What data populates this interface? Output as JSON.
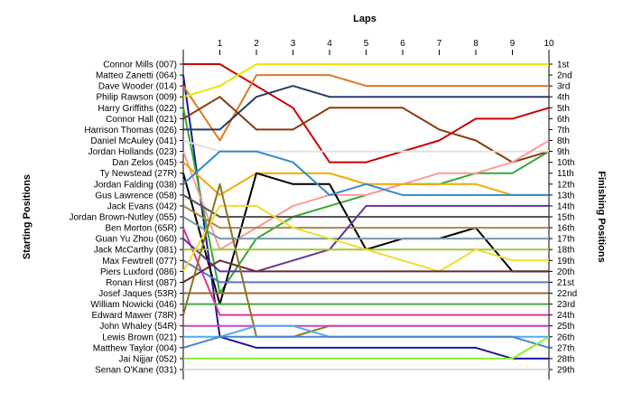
{
  "chart_data": {
    "type": "line",
    "title": "Laps",
    "ylabel_left": "Starting Positions",
    "ylabel_right": "Finishing Positions",
    "laps": [
      1,
      2,
      3,
      4,
      5,
      6,
      7,
      8,
      9,
      10
    ],
    "finishing_labels": [
      "1st",
      "2nd",
      "3rd",
      "4th",
      "5th",
      "6th",
      "7th",
      "8th",
      "9th",
      "10th",
      "11th",
      "12th",
      "13th",
      "14th",
      "15th",
      "16th",
      "17th",
      "18th",
      "19th",
      "20th",
      "21st",
      "22nd",
      "23rd",
      "24th",
      "25th",
      "26th",
      "27th",
      "28th",
      "29th"
    ],
    "grid": false,
    "series": [
      {
        "name": "Connor Mills (007)",
        "color": "#cc0000",
        "positions": [
          1,
          1,
          3,
          5,
          10,
          10,
          9,
          8,
          6,
          6,
          5
        ]
      },
      {
        "name": "Matteo Zanetti (064)",
        "color": "#1a1a99",
        "positions": [
          2,
          26,
          27,
          27,
          27,
          27,
          27,
          27,
          27,
          28,
          28
        ]
      },
      {
        "name": "Dave Wooder (014)",
        "color": "#e07820",
        "positions": [
          3,
          8,
          2,
          2,
          2,
          3,
          3,
          3,
          3,
          3,
          3
        ]
      },
      {
        "name": "Philip Rawson (009)",
        "color": "#e8e800",
        "positions": [
          4,
          3,
          1,
          1,
          1,
          1,
          1,
          1,
          1,
          1,
          1
        ]
      },
      {
        "name": "Harry Griffiths (022)",
        "color": "#33aa33",
        "positions": [
          5,
          22,
          17,
          15,
          14,
          13,
          12,
          12,
          11,
          11,
          9
        ]
      },
      {
        "name": "Connor Hall (021)",
        "color": "#8b3a0a",
        "positions": [
          6,
          4,
          7,
          7,
          5,
          5,
          5,
          7,
          8,
          10,
          9
        ]
      },
      {
        "name": "Harrison Thomas (026)",
        "color": "#2a3a66",
        "positions": [
          7,
          7,
          4,
          3,
          4,
          4,
          4,
          4,
          4,
          4,
          4
        ]
      },
      {
        "name": "Daniel McAuley (041)",
        "color": "#e0e0e0",
        "positions": [
          8,
          9,
          9,
          9,
          9,
          9,
          9,
          9,
          9,
          9,
          9
        ]
      },
      {
        "name": "Jordan Hollands (023)",
        "color": "#ff9999",
        "positions": [
          9,
          18,
          16,
          14,
          13,
          13,
          12,
          11,
          11,
          10,
          8
        ]
      },
      {
        "name": "Dan Zelos (045)",
        "color": "#eeaa00",
        "positions": [
          10,
          13,
          11,
          11,
          11,
          12,
          12,
          12,
          12,
          13,
          13
        ]
      },
      {
        "name": "Ty Newstead (27R)",
        "color": "#000000",
        "positions": [
          11,
          23,
          11,
          12,
          12,
          18,
          17,
          17,
          16,
          20,
          20
        ]
      },
      {
        "name": "Jordan Falding (038)",
        "color": "#3388cc",
        "positions": [
          12,
          9,
          9,
          10,
          13,
          12,
          13,
          13,
          13,
          13,
          13
        ]
      },
      {
        "name": "Gus Lawrence (058)",
        "color": "#555555",
        "positions": [
          13,
          15,
          15,
          15,
          15,
          15,
          15,
          15,
          15,
          15,
          15
        ]
      },
      {
        "name": "Jack Evans (042)",
        "color": "#aa8844",
        "positions": [
          14,
          16,
          16,
          16,
          16,
          16,
          16,
          16,
          16,
          16,
          16
        ]
      },
      {
        "name": "Jordan Brown-Nutley (055)",
        "color": "#7a9aaa",
        "positions": [
          15,
          17,
          17,
          17,
          17,
          17,
          17,
          17,
          17,
          17,
          17
        ]
      },
      {
        "name": "Ben Morton (65R)",
        "color": "#dd3399",
        "positions": [
          16,
          24,
          24,
          24,
          24,
          24,
          24,
          24,
          24,
          24,
          24
        ]
      },
      {
        "name": "Guan Yu Zhou (060)",
        "color": "#663399",
        "positions": [
          17,
          20,
          20,
          19,
          18,
          14,
          14,
          14,
          14,
          14,
          14
        ]
      },
      {
        "name": "Jack McCarthy (081)",
        "color": "#99cc33",
        "positions": [
          18,
          18,
          18,
          18,
          18,
          18,
          18,
          18,
          18,
          18,
          18
        ]
      },
      {
        "name": "Max Fewtrell (077)",
        "color": "#5577cc",
        "positions": [
          19,
          21,
          21,
          21,
          21,
          21,
          21,
          21,
          21,
          21,
          21
        ]
      },
      {
        "name": "Piers Luxford (086)",
        "color": "#eedd33",
        "positions": [
          20,
          14,
          14,
          16,
          17,
          18,
          19,
          20,
          18,
          19,
          19
        ]
      },
      {
        "name": "Ronan Hirst (087)",
        "color": "#6b2a2a",
        "positions": [
          21,
          19,
          20,
          20,
          20,
          20,
          20,
          20,
          20,
          20,
          20
        ]
      },
      {
        "name": "Josef Jaques (53R)",
        "color": "#996633",
        "positions": [
          22,
          22,
          22,
          22,
          22,
          22,
          22,
          22,
          22,
          22,
          22
        ]
      },
      {
        "name": "William Nowicki (046)",
        "color": "#44aa44",
        "positions": [
          23,
          23,
          23,
          23,
          23,
          23,
          23,
          23,
          23,
          23,
          23
        ]
      },
      {
        "name": "Edward Mawer (78R)",
        "color": "#887722",
        "positions": [
          24,
          12,
          26,
          26,
          25,
          25,
          25,
          25,
          25,
          25,
          25
        ]
      },
      {
        "name": "John Whaley (54R)",
        "color": "#cc44cc",
        "positions": [
          25,
          25,
          25,
          25,
          25,
          25,
          25,
          25,
          25,
          25,
          25
        ]
      },
      {
        "name": "Lewis Brown (021)",
        "color": "#55aaee",
        "positions": [
          26,
          26,
          25,
          25,
          26,
          26,
          26,
          26,
          26,
          26,
          26
        ]
      },
      {
        "name": "Matthew Taylor (004)",
        "color": "#4488cc",
        "positions": [
          27,
          26,
          26,
          26,
          26,
          26,
          26,
          26,
          26,
          26,
          27
        ]
      },
      {
        "name": "Jai Nijjar (052)",
        "color": "#88ee33",
        "positions": [
          28,
          28,
          28,
          28,
          28,
          28,
          28,
          28,
          28,
          28,
          26
        ]
      },
      {
        "name": "Senan O'Kane (031)",
        "color": "#dddddd",
        "positions": [
          29,
          29,
          29,
          29,
          29,
          29,
          29,
          29,
          29,
          29,
          29
        ]
      }
    ]
  }
}
